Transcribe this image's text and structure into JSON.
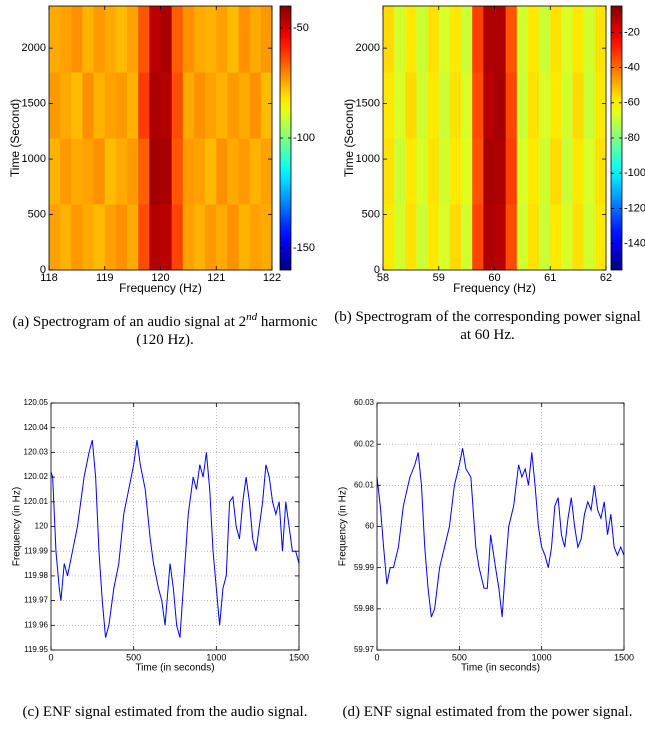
{
  "chart_data": [
    {
      "type": "heatmap",
      "caption": {
        "before": "(a) Spectrogram of an audio signal at 2",
        "superscript": "nd",
        "after": " harmonic (120 Hz)."
      },
      "xlabel": "Frequency (Hz)",
      "ylabel": "Time (Second)",
      "xlim": [
        118,
        122
      ],
      "xticks": [
        118,
        119,
        120,
        121,
        122
      ],
      "ylim": [
        0,
        2380
      ],
      "yticks": [
        0,
        500,
        1000,
        1500,
        2000
      ],
      "clim": [
        -160,
        -40
      ],
      "cticks": [
        -50,
        -100,
        -150
      ],
      "colormap": "jet",
      "z": [
        [
          -74,
          -76,
          -73,
          -75,
          -77,
          -74,
          -72,
          -75,
          -64,
          -46,
          -47,
          -63,
          -74,
          -76,
          -73,
          -75,
          -72,
          -76,
          -74,
          -75
        ],
        [
          -76,
          -73,
          -75,
          -74,
          -72,
          -77,
          -75,
          -73,
          -66,
          -44,
          -45,
          -65,
          -73,
          -74,
          -77,
          -72,
          -75,
          -73,
          -76,
          -74
        ],
        [
          -73,
          -75,
          -77,
          -72,
          -76,
          -74,
          -73,
          -76,
          -62,
          -45,
          -46,
          -64,
          -75,
          -72,
          -74,
          -76,
          -73,
          -75,
          -72,
          -77
        ],
        [
          -75,
          -74,
          -72,
          -76,
          -73,
          -75,
          -77,
          -74,
          -65,
          -47,
          -45,
          -66,
          -72,
          -75,
          -76,
          -74,
          -77,
          -72,
          -75,
          -73
        ]
      ]
    },
    {
      "type": "heatmap",
      "caption": "(b) Spectrogram of the corresponding power signal at 60 Hz.",
      "xlabel": "Frequency (Hz)",
      "ylabel": "Time (Second)",
      "xlim": [
        58,
        62
      ],
      "xticks": [
        58,
        59,
        60,
        61,
        62
      ],
      "ylim": [
        0,
        2380
      ],
      "yticks": [
        0,
        500,
        1000,
        1500,
        2000
      ],
      "clim": [
        -155,
        -5
      ],
      "cticks": [
        -20,
        -40,
        -60,
        -80,
        -100,
        -120,
        -140
      ],
      "colormap": "jet",
      "z": [
        [
          -58,
          -68,
          -57,
          -69,
          -58,
          -67,
          -56,
          -68,
          -34,
          -12,
          -13,
          -35,
          -68,
          -57,
          -69,
          -58,
          -67,
          -57,
          -68,
          -58
        ],
        [
          -57,
          -69,
          -58,
          -67,
          -57,
          -68,
          -58,
          -66,
          -36,
          -11,
          -12,
          -33,
          -67,
          -58,
          -68,
          -56,
          -69,
          -58,
          -67,
          -57
        ],
        [
          -58,
          -67,
          -56,
          -68,
          -58,
          -69,
          -57,
          -67,
          -35,
          -13,
          -11,
          -34,
          -69,
          -57,
          -67,
          -58,
          -68,
          -56,
          -69,
          -58
        ],
        [
          -56,
          -68,
          -58,
          -69,
          -57,
          -67,
          -58,
          -69,
          -33,
          -12,
          -12,
          -36,
          -68,
          -58,
          -69,
          -57,
          -67,
          -58,
          -68,
          -57
        ]
      ]
    },
    {
      "type": "line",
      "caption": "(c) ENF signal estimated from the audio signal.",
      "xlabel": "Time (in seconds)",
      "ylabel": "Frequency (in Hz)",
      "grid": true,
      "xlim": [
        0,
        1500
      ],
      "xticks": [
        0,
        500,
        1000,
        1500
      ],
      "ylim": [
        119.95,
        120.05
      ],
      "yticks": [
        119.95,
        119.96,
        119.97,
        119.98,
        119.99,
        120,
        120.01,
        120.02,
        120.03,
        120.04,
        120.05
      ],
      "color": "#0000ff",
      "x": [
        0,
        10,
        30,
        50,
        60,
        80,
        100,
        130,
        160,
        200,
        230,
        250,
        270,
        290,
        310,
        330,
        350,
        380,
        410,
        440,
        470,
        500,
        520,
        540,
        570,
        600,
        620,
        650,
        670,
        690,
        720,
        740,
        760,
        780,
        800,
        830,
        860,
        880,
        900,
        920,
        940,
        960,
        980,
        1000,
        1020,
        1040,
        1060,
        1080,
        1100,
        1120,
        1140,
        1160,
        1180,
        1200,
        1220,
        1240,
        1260,
        1280,
        1300,
        1320,
        1340,
        1360,
        1380,
        1400,
        1420,
        1440,
        1460,
        1480,
        1500
      ],
      "values": [
        120.022,
        120.02,
        119.99,
        119.975,
        119.97,
        119.985,
        119.98,
        119.99,
        120.0,
        120.02,
        120.03,
        120.035,
        120.02,
        119.99,
        119.97,
        119.955,
        119.96,
        119.975,
        119.985,
        120.005,
        120.015,
        120.025,
        120.035,
        120.025,
        120.015,
        119.995,
        119.985,
        119.975,
        119.97,
        119.96,
        119.985,
        119.975,
        119.96,
        119.955,
        119.975,
        120.005,
        120.02,
        120.015,
        120.025,
        120.02,
        120.03,
        120.015,
        119.99,
        119.975,
        119.96,
        119.975,
        119.98,
        120.01,
        120.012,
        120.0,
        119.995,
        120.01,
        120.02,
        120.01,
        119.995,
        119.99,
        120.0,
        120.01,
        120.025,
        120.02,
        120.01,
        120.005,
        120.01,
        119.99,
        120.01,
        120.0,
        119.99,
        119.99,
        119.985
      ]
    },
    {
      "type": "line",
      "caption": "(d) ENF signal estimated from the power signal.",
      "xlabel": "Time (in seconds)",
      "ylabel": "Frequency (in Hz)",
      "grid": true,
      "xlim": [
        0,
        1500
      ],
      "xticks": [
        0,
        500,
        1000,
        1500
      ],
      "ylim": [
        59.97,
        60.03
      ],
      "yticks": [
        59.97,
        59.98,
        59.99,
        60,
        60.01,
        60.02,
        60.03
      ],
      "color": "#0000ff",
      "x": [
        0,
        20,
        40,
        60,
        80,
        100,
        130,
        160,
        200,
        230,
        250,
        270,
        290,
        310,
        330,
        350,
        380,
        410,
        440,
        470,
        500,
        520,
        540,
        570,
        600,
        620,
        650,
        670,
        690,
        720,
        740,
        760,
        780,
        800,
        830,
        860,
        880,
        900,
        920,
        940,
        960,
        980,
        1000,
        1020,
        1040,
        1060,
        1080,
        1100,
        1120,
        1140,
        1160,
        1180,
        1200,
        1220,
        1240,
        1260,
        1280,
        1300,
        1320,
        1340,
        1360,
        1380,
        1400,
        1420,
        1440,
        1460,
        1480,
        1500
      ],
      "values": [
        60.012,
        60.005,
        59.995,
        59.986,
        59.99,
        59.99,
        59.995,
        60.005,
        60.012,
        60.015,
        60.018,
        60.01,
        59.995,
        59.985,
        59.978,
        59.98,
        59.99,
        59.995,
        60.0,
        60.01,
        60.015,
        60.019,
        60.014,
        60.012,
        59.995,
        59.99,
        59.985,
        59.985,
        59.998,
        59.99,
        59.985,
        59.978,
        59.99,
        60.0,
        60.005,
        60.015,
        60.012,
        60.014,
        60.01,
        60.018,
        60.01,
        60.0,
        59.995,
        59.993,
        59.99,
        59.995,
        60.005,
        60.007,
        59.998,
        59.995,
        60.002,
        60.007,
        60.0,
        59.995,
        59.997,
        60.003,
        60.006,
        60.004,
        60.01,
        60.004,
        60.002,
        60.006,
        59.998,
        60.003,
        59.995,
        59.993,
        59.995,
        59.993
      ]
    }
  ]
}
